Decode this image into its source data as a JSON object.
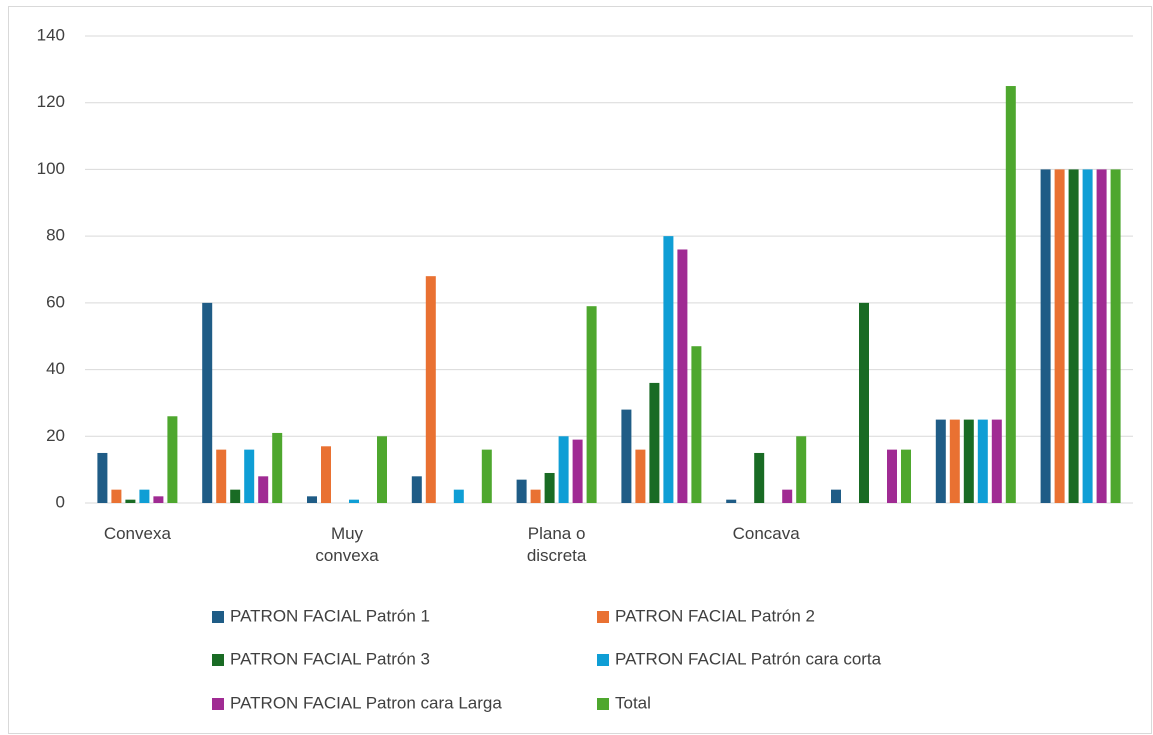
{
  "chart_data": {
    "type": "bar",
    "categories": [
      "Convexa",
      null,
      "Muy convexa",
      null,
      "Plana o discreta",
      null,
      "Concava",
      null,
      null,
      null
    ],
    "series": [
      {
        "name": "PATRON FACIAL Patrón 1",
        "color": "#1f5c86",
        "values": [
          15,
          60,
          2,
          8,
          7,
          28,
          1,
          4,
          25,
          100
        ]
      },
      {
        "name": "PATRON FACIAL Patrón 2",
        "color": "#e97132",
        "values": [
          4,
          16,
          17,
          68,
          4,
          16,
          0,
          0,
          25,
          100
        ]
      },
      {
        "name": "PATRON FACIAL Patrón 3",
        "color": "#196b24",
        "values": [
          1,
          4,
          0,
          0,
          9,
          36,
          15,
          60,
          25,
          100
        ]
      },
      {
        "name": "PATRON FACIAL Patrón cara corta",
        "color": "#0f9ed5",
        "values": [
          4,
          16,
          1,
          4,
          20,
          80,
          0,
          0,
          25,
          100
        ]
      },
      {
        "name": "PATRON FACIAL Patron cara Larga",
        "color": "#a02b93",
        "values": [
          2,
          8,
          0,
          0,
          19,
          76,
          4,
          16,
          25,
          100
        ]
      },
      {
        "name": "Total",
        "color": "#4ea72e",
        "values": [
          26,
          21,
          20,
          16,
          59,
          47,
          20,
          16,
          125,
          100
        ]
      }
    ],
    "ylim": [
      0,
      140
    ],
    "yticks": [
      0,
      20,
      40,
      60,
      80,
      100,
      120,
      140
    ],
    "grid": true,
    "legend": "bottom"
  }
}
